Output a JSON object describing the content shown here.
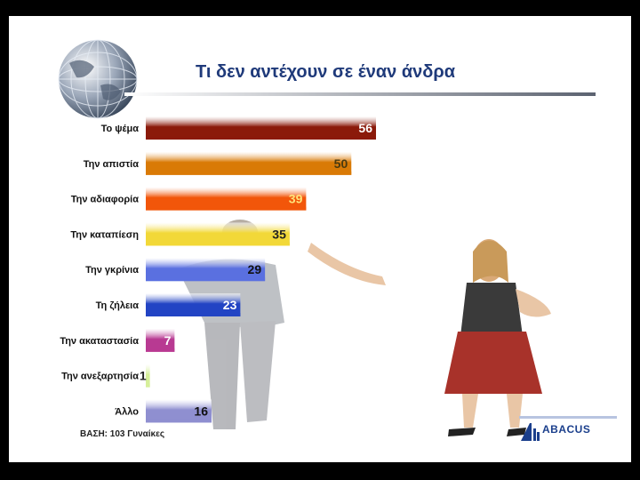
{
  "slide": {
    "title": "Τι δεν αντέχουν σε έναν άνδρα",
    "base_note": "ΒΑΣΗ: 103 Γυναίκες",
    "logo": {
      "text": "ABACUS",
      "icon": "abacus-logo-icon"
    },
    "decor": {
      "globe": "globe-icon",
      "photo": "couple-photo"
    }
  },
  "colors": {
    "title": "#1f3a7a",
    "bars": [
      "#8b1a0a",
      "#d97a06",
      "#f2560a",
      "#f2d838",
      "#5a70e0",
      "#2244c4",
      "#b83a92",
      "#d6ef9a",
      "#8f8fd0"
    ],
    "value_text": [
      "#ffffff",
      "#4a3a10",
      "#ffe37a",
      "#222222",
      "#111111",
      "#ffffff",
      "#ffffff",
      "#222222",
      "#111111"
    ]
  },
  "chart_data": {
    "type": "bar",
    "orientation": "horizontal",
    "title": "Τι δεν αντέχουν σε έναν άνδρα",
    "categories": [
      "Το ψέμα",
      "Την απιστία",
      "Την αδιαφορία",
      "Την καταπίεση",
      "Την γκρίνια",
      "Τη ζήλεια",
      "Την ακαταστασία",
      "Την ανεξαρτησία",
      "Άλλο"
    ],
    "values": [
      56,
      50,
      39,
      35,
      29,
      23,
      7,
      1,
      16
    ],
    "data_labels": [
      "56",
      "50",
      "39",
      "35",
      "29",
      "23",
      "7",
      "1",
      "16"
    ],
    "xlim": [
      0,
      60
    ],
    "grid": false,
    "legend": "none"
  }
}
